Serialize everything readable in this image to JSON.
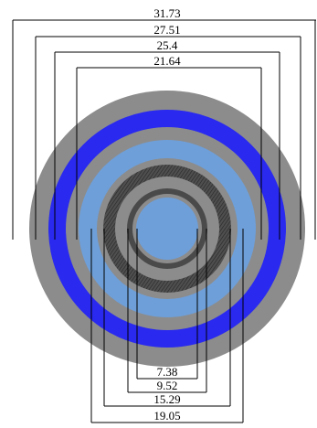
{
  "colors": {
    "gray": "#8c8c8c",
    "blue": "#2929f0",
    "light_blue": "#6e9fd9",
    "dark_gray": "#4f4f4f",
    "stripe": "#3a3a3a",
    "line": "#000000"
  },
  "rings": [
    {
      "name": "outer-gray-ring",
      "diameter": 31.73,
      "color": "gray"
    },
    {
      "name": "blue-ring",
      "diameter": 27.51,
      "color": "blue"
    },
    {
      "name": "gray-ring",
      "diameter": 25.4,
      "color": "gray"
    },
    {
      "name": "light-blue-ring",
      "diameter": 21.64,
      "color": "light_blue"
    },
    {
      "name": "dark-gray-ring",
      "diameter": 19.05,
      "color": "dark_gray",
      "hatched": true
    },
    {
      "name": "gray-inner-ring",
      "diameter": 15.29,
      "color": "gray"
    },
    {
      "name": "striped-ring",
      "diameter": 9.52,
      "color": "dark_gray",
      "hatched": true
    },
    {
      "name": "center-core",
      "diameter": 7.38,
      "color": "light_blue"
    }
  ],
  "dimensions_top": [
    "31.73",
    "27.51",
    "25.4",
    "21.64"
  ],
  "dimensions_bottom": [
    "7.38",
    "9.52",
    "15.29",
    "19.05"
  ]
}
